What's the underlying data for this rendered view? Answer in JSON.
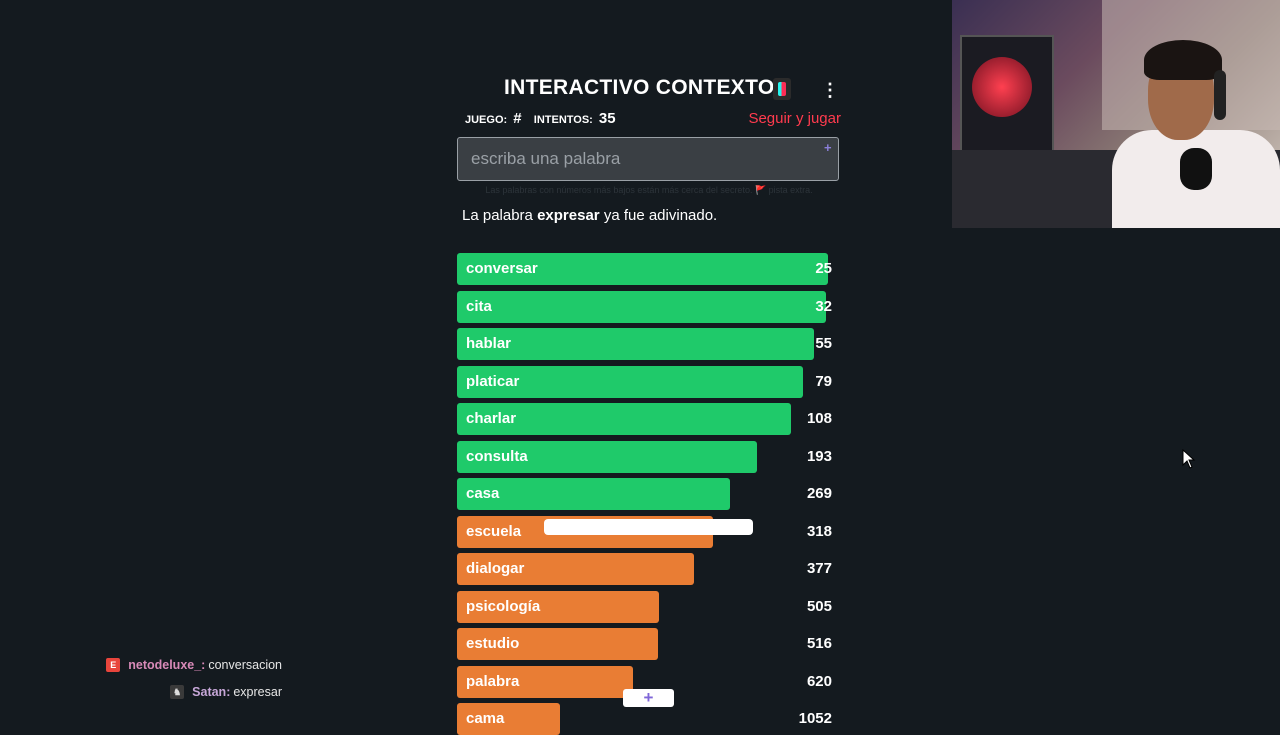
{
  "game": {
    "title": "INTERACTIVO CONTEXTO",
    "stats": {
      "game_label": "JUEGO:",
      "game_value": "#",
      "attempts_label": "INTENTOS:",
      "attempts_value": "35"
    },
    "follow_link": "Seguir y jugar",
    "input_placeholder": "escriba una palabra",
    "hint": "Las palabras con números más bajos están más cerca del secreto. 🚩 pista extra.",
    "message": {
      "prefix": "La palabra",
      "word": "expresar",
      "suffix": "ya fue adivinado."
    },
    "max_rank_scale": 1100,
    "guesses": [
      {
        "word": "conversar",
        "rank": 25,
        "color": "green",
        "fill": 0.97
      },
      {
        "word": "cita",
        "rank": 32,
        "color": "green",
        "fill": 0.965
      },
      {
        "word": "hablar",
        "rank": 55,
        "color": "green",
        "fill": 0.935
      },
      {
        "word": "platicar",
        "rank": 79,
        "color": "green",
        "fill": 0.905
      },
      {
        "word": "charlar",
        "rank": 108,
        "color": "green",
        "fill": 0.875
      },
      {
        "word": "consulta",
        "rank": 193,
        "color": "green",
        "fill": 0.785
      },
      {
        "word": "casa",
        "rank": 269,
        "color": "green",
        "fill": 0.715
      },
      {
        "word": "escuela",
        "rank": 318,
        "color": "orange",
        "fill": 0.67
      },
      {
        "word": "dialogar",
        "rank": 377,
        "color": "orange",
        "fill": 0.62
      },
      {
        "word": "psicología",
        "rank": 505,
        "color": "orange",
        "fill": 0.53
      },
      {
        "word": "estudio",
        "rank": 516,
        "color": "orange",
        "fill": 0.525
      },
      {
        "word": "palabra",
        "rank": 620,
        "color": "orange",
        "fill": 0.46
      },
      {
        "word": "cama",
        "rank": 1052,
        "color": "orange",
        "fill": 0.27
      }
    ],
    "colors": {
      "green": "#1fca6a",
      "orange": "#e97d34",
      "link": "#ff3b4e"
    }
  },
  "overlay_plus": "+",
  "chat": [
    {
      "badge": "E",
      "user": "netodeluxe_:",
      "text": "conversacion"
    },
    {
      "badge": "♞",
      "user": "Satan:",
      "text": "expresar"
    }
  ]
}
